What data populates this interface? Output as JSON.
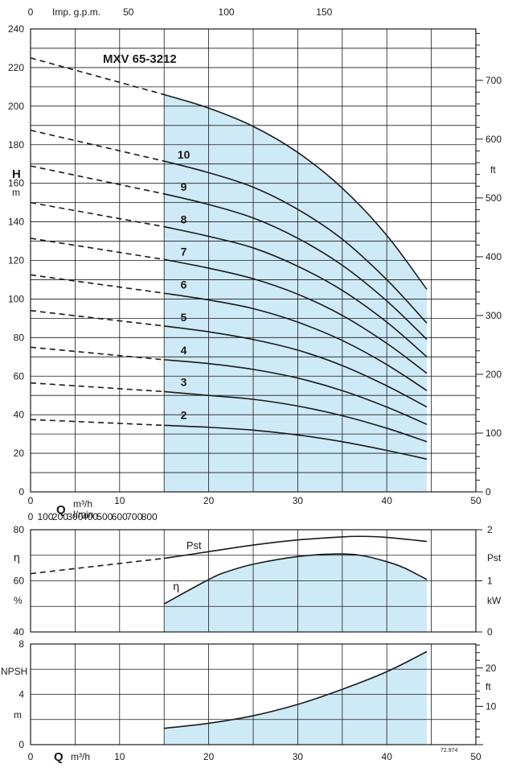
{
  "chart_data": [
    {
      "type": "line",
      "title": "MXV 65-3212",
      "ylabel": "H",
      "yunit": "m",
      "yunit_right": "ft",
      "xunit_top": "Imp. g.p.m.",
      "xlim": [
        0,
        50
      ],
      "ylim": [
        0,
        240
      ],
      "x_ticks": [
        10,
        20,
        30,
        40
      ],
      "y_ticks": [
        0,
        20,
        40,
        60,
        80,
        100,
        120,
        140,
        160,
        180,
        200,
        220,
        240
      ],
      "gpm_ticks": [
        0,
        50,
        100,
        150
      ],
      "ft_ticks": [
        0,
        100,
        200,
        300,
        400,
        500,
        600,
        700
      ],
      "shaded_range": [
        15,
        44.5
      ],
      "grid": true,
      "series": [
        {
          "name": "2",
          "points": [
            [
              0,
              37.5
            ],
            [
              15,
              34.5
            ],
            [
              20,
              33.5
            ],
            [
              25,
              32
            ],
            [
              30,
              29.5
            ],
            [
              35,
              26
            ],
            [
              40,
              21.5
            ],
            [
              44.5,
              17
            ]
          ]
        },
        {
          "name": "3",
          "points": [
            [
              0,
              56.5
            ],
            [
              15,
              52
            ],
            [
              20,
              50
            ],
            [
              25,
              48
            ],
            [
              30,
              44.5
            ],
            [
              35,
              39.5
            ],
            [
              40,
              33
            ],
            [
              44.5,
              26
            ]
          ]
        },
        {
          "name": "4",
          "points": [
            [
              0,
              75
            ],
            [
              15,
              68.5
            ],
            [
              20,
              66.5
            ],
            [
              25,
              63.5
            ],
            [
              30,
              59
            ],
            [
              35,
              52.5
            ],
            [
              40,
              44
            ],
            [
              44.5,
              35
            ]
          ]
        },
        {
          "name": "5",
          "points": [
            [
              0,
              94
            ],
            [
              15,
              86
            ],
            [
              20,
              83
            ],
            [
              25,
              79
            ],
            [
              30,
              73.5
            ],
            [
              35,
              65.5
            ],
            [
              40,
              55
            ],
            [
              44.5,
              44
            ]
          ]
        },
        {
          "name": "6",
          "points": [
            [
              0,
              112.5
            ],
            [
              15,
              103
            ],
            [
              20,
              99.5
            ],
            [
              25,
              95
            ],
            [
              30,
              88
            ],
            [
              35,
              78.5
            ],
            [
              40,
              66
            ],
            [
              44.5,
              52.5
            ]
          ]
        },
        {
          "name": "7",
          "points": [
            [
              0,
              131.5
            ],
            [
              15,
              120.5
            ],
            [
              20,
              116
            ],
            [
              25,
              110.5
            ],
            [
              30,
              102.5
            ],
            [
              35,
              91.5
            ],
            [
              40,
              77
            ],
            [
              44.5,
              61.5
            ]
          ]
        },
        {
          "name": "8",
          "points": [
            [
              0,
              150
            ],
            [
              15,
              137.5
            ],
            [
              20,
              132.5
            ],
            [
              25,
              126.5
            ],
            [
              30,
              117
            ],
            [
              35,
              104.5
            ],
            [
              40,
              88
            ],
            [
              44.5,
              70
            ]
          ]
        },
        {
          "name": "9",
          "points": [
            [
              0,
              169
            ],
            [
              15,
              154.5
            ],
            [
              20,
              149
            ],
            [
              25,
              142
            ],
            [
              30,
              131.5
            ],
            [
              35,
              117.5
            ],
            [
              40,
              99
            ],
            [
              44.5,
              79
            ]
          ]
        },
        {
          "name": "10",
          "points": [
            [
              0,
              187.5
            ],
            [
              15,
              171.5
            ],
            [
              20,
              165.5
            ],
            [
              25,
              158
            ],
            [
              30,
              146.5
            ],
            [
              35,
              131
            ],
            [
              40,
              110
            ],
            [
              44.5,
              87.5
            ]
          ]
        },
        {
          "name": "",
          "points": [
            [
              0,
              225
            ],
            [
              15,
              206
            ],
            [
              20,
              199
            ],
            [
              25,
              189.5
            ],
            [
              30,
              176
            ],
            [
              35,
              157.5
            ],
            [
              40,
              133
            ],
            [
              44.5,
              105
            ]
          ]
        }
      ]
    },
    {
      "type": "line",
      "xlabel_top": "l/min",
      "lmin_ticks": [
        0,
        100,
        200,
        300,
        400,
        500,
        600,
        700,
        800
      ],
      "ylabel": "η",
      "yunit": "%",
      "ylabel_right": "Pst",
      "yunit_right": "kW",
      "xlim": [
        0,
        50
      ],
      "ylim": [
        40,
        80
      ],
      "y_ticks": [
        40,
        60,
        80
      ],
      "kw_ticks": [
        0,
        1,
        2
      ],
      "shaded_range": [
        15,
        44.5
      ],
      "grid": true,
      "series": [
        {
          "name": "Pst",
          "points": [
            [
              0,
              1.14
            ],
            [
              15,
              1.44
            ],
            [
              20,
              1.57
            ],
            [
              25,
              1.7
            ],
            [
              30,
              1.8
            ],
            [
              35,
              1.86
            ],
            [
              37,
              1.87
            ],
            [
              40,
              1.85
            ],
            [
              44.5,
              1.77
            ]
          ]
        },
        {
          "name": "η",
          "points": [
            [
              15,
              51
            ],
            [
              20,
              60.5
            ],
            [
              22,
              63.5
            ],
            [
              25,
              66.5
            ],
            [
              30,
              69.5
            ],
            [
              34,
              70.5
            ],
            [
              37,
              70
            ],
            [
              40,
              67.5
            ],
            [
              42,
              65
            ],
            [
              44.5,
              60.5
            ]
          ]
        }
      ]
    },
    {
      "type": "line",
      "ylabel": "NPSH",
      "yunit": "m",
      "yunit_right": "ft",
      "xlabel": "Q",
      "xunit": "m³/h",
      "xlim": [
        0,
        50
      ],
      "ylim": [
        0,
        8
      ],
      "y_ticks": [
        0,
        4,
        8
      ],
      "ft_ticks": [
        10,
        20
      ],
      "x_ticks": [
        0,
        10,
        20,
        30,
        40,
        50
      ],
      "shaded_range": [
        15,
        44.5
      ],
      "grid": true,
      "footnote": "72.974",
      "series": [
        {
          "name": "NPSH",
          "points": [
            [
              15,
              1.3
            ],
            [
              20,
              1.7
            ],
            [
              25,
              2.3
            ],
            [
              30,
              3.2
            ],
            [
              35,
              4.4
            ],
            [
              40,
              5.8
            ],
            [
              44.5,
              7.4
            ]
          ]
        }
      ]
    }
  ],
  "labels": {
    "q_label": "Q",
    "q_unit": "m³/h",
    "lmin_unit": "l/min"
  }
}
